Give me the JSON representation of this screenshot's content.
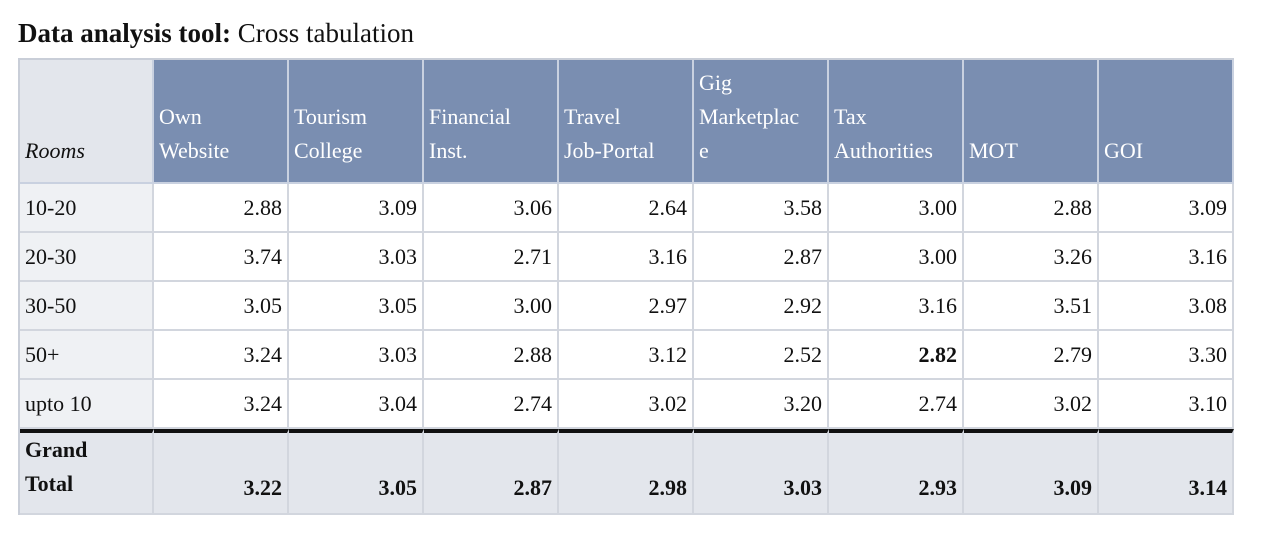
{
  "title_bold": "Data analysis tool:",
  "title_rest": " Cross tabulation",
  "header": {
    "corner": "Rooms",
    "columns": [
      [
        "Own",
        "Website"
      ],
      [
        "Tourism",
        "College"
      ],
      [
        "Financial",
        "Inst."
      ],
      [
        "Travel",
        "Job-Portal"
      ],
      [
        "Gig",
        "Marketplac",
        "e"
      ],
      [
        "Tax",
        "Authorities"
      ],
      [
        "MOT"
      ],
      [
        "GOI"
      ]
    ]
  },
  "rows": [
    {
      "label": "10-20",
      "values": [
        "2.88",
        "3.09",
        "3.06",
        "2.64",
        "3.58",
        "3.00",
        "2.88",
        "3.09"
      ],
      "bold": []
    },
    {
      "label": "20-30",
      "values": [
        "3.74",
        "3.03",
        "2.71",
        "3.16",
        "2.87",
        "3.00",
        "3.26",
        "3.16"
      ],
      "bold": []
    },
    {
      "label": "30-50",
      "values": [
        "3.05",
        "3.05",
        "3.00",
        "2.97",
        "2.92",
        "3.16",
        "3.51",
        "3.08"
      ],
      "bold": []
    },
    {
      "label": "50+",
      "values": [
        "3.24",
        "3.03",
        "2.88",
        "3.12",
        "2.52",
        "2.82",
        "2.79",
        "3.30"
      ],
      "bold": [
        5
      ]
    },
    {
      "label": "upto 10",
      "values": [
        "3.24",
        "3.04",
        "2.74",
        "3.02",
        "3.20",
        "2.74",
        "3.02",
        "3.10"
      ],
      "bold": []
    }
  ],
  "total": {
    "label": [
      "Grand",
      "Total"
    ],
    "values": [
      "3.22",
      "3.05",
      "2.87",
      "2.98",
      "3.03",
      "2.93",
      "3.09",
      "3.14"
    ]
  }
}
